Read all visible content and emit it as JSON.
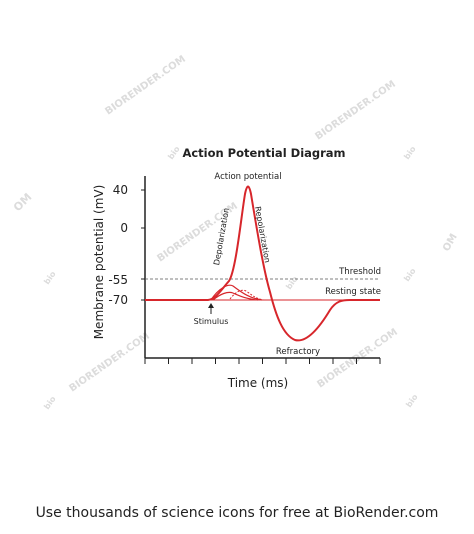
{
  "chart_data": {
    "type": "line",
    "title": "Action Potential Diagram",
    "xlabel": "Time (ms)",
    "ylabel": "Membrane potential (mV)",
    "y_ticks": [
      "40",
      "0",
      "-55",
      "-70"
    ],
    "reference_lines": [
      {
        "label": "Threshold",
        "value": -55,
        "style": "dashed"
      },
      {
        "label": "Resting state",
        "value": -70,
        "style": "solid"
      }
    ],
    "annotations": {
      "peak": "Action potential",
      "rising": "Depolarization",
      "falling": "Repolarization",
      "trough": "Refractory",
      "stimulus": "Stimulus"
    },
    "series": [
      {
        "values": [
          -70,
          -70,
          -55,
          40,
          -70,
          -90,
          -70,
          -70
        ],
        "color": "#d7262b"
      }
    ],
    "grid": false,
    "legend": "none"
  },
  "watermark": {
    "text": "BIORENDER.COM",
    "text_short": "bio",
    "text_fragment": "OM"
  },
  "footer": "Use thousands of science icons for free at BioRender.com",
  "colors": {
    "accent": "#d7262b",
    "axis": "#222222",
    "threshold": "#555555",
    "watermark": "#dcdcdc"
  }
}
